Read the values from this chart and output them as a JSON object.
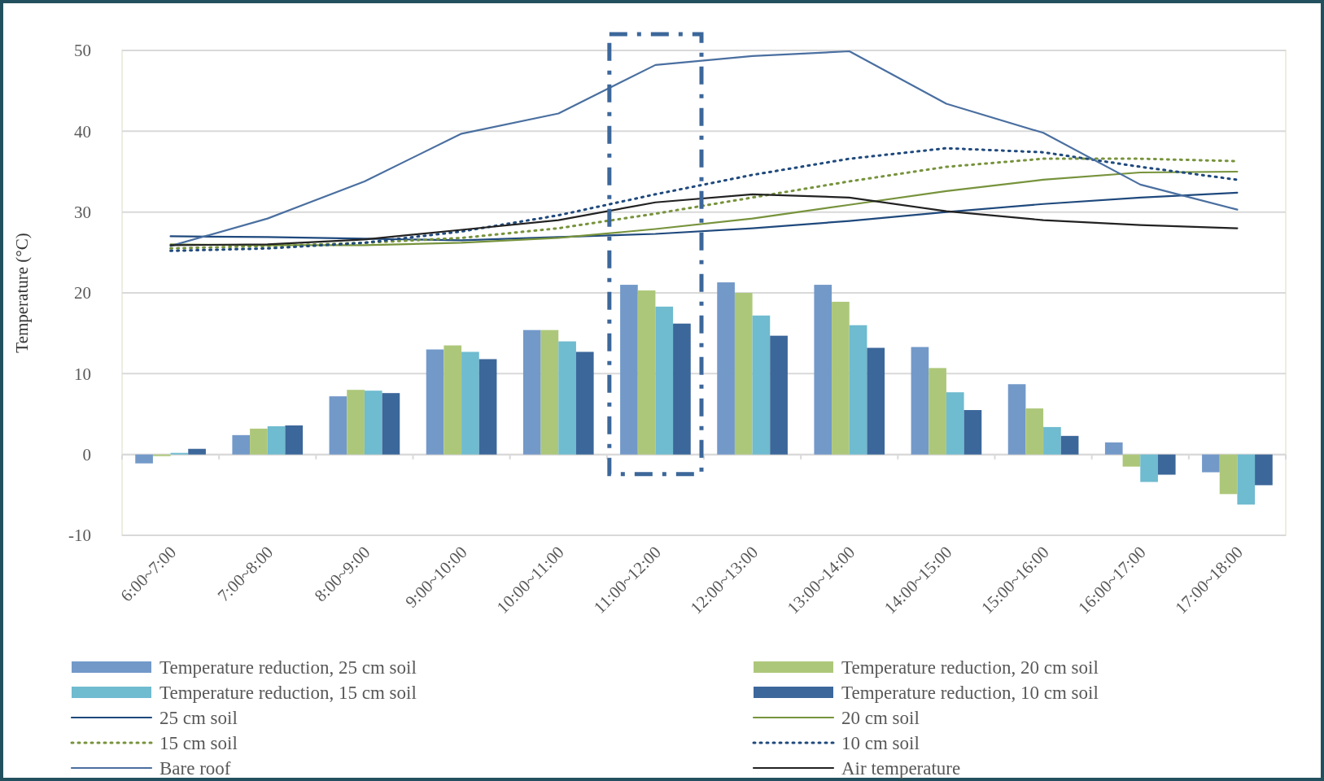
{
  "chart_data": {
    "type": "bar",
    "ylabel": "Temperature (°C)",
    "categories": [
      "6:00~7:00",
      "7:00~8:00",
      "8:00~9:00",
      "9:00~10:00",
      "10:00~11:00",
      "11:00~12:00",
      "12:00~13:00",
      "13:00~14:00",
      "14:00~15:00",
      "15:00~16:00",
      "16:00~17:00",
      "17:00~18:00"
    ],
    "series": [
      {
        "name": "Temperature reduction, 25 cm soil",
        "color": "#7399c9",
        "values": [
          -1.1,
          2.4,
          7.2,
          13.0,
          15.4,
          21.0,
          21.3,
          21.0,
          13.3,
          8.7,
          1.5,
          -2.2
        ]
      },
      {
        "name": "Temperature reduction, 20 cm soil",
        "color": "#adc77a",
        "values": [
          -0.2,
          3.2,
          8.0,
          13.5,
          15.4,
          20.3,
          20.0,
          18.9,
          10.7,
          5.7,
          -1.5,
          -4.9
        ]
      },
      {
        "name": "Temperature reduction, 15 cm soil",
        "color": "#6fbbd0",
        "values": [
          0.2,
          3.5,
          7.9,
          12.7,
          14.0,
          18.3,
          17.2,
          16.0,
          7.7,
          3.4,
          -3.4,
          -6.2
        ]
      },
      {
        "name": "Temperature reduction, 10 cm soil",
        "color": "#3c679a",
        "values": [
          0.7,
          3.6,
          7.6,
          11.8,
          12.7,
          16.2,
          14.7,
          13.2,
          5.5,
          2.3,
          -2.5,
          -3.8
        ]
      },
      {
        "name": "25 cm soil",
        "type": "line",
        "line_style": "solid",
        "color": "#1f497d",
        "values": [
          27.0,
          26.9,
          26.7,
          26.5,
          26.9,
          27.3,
          28.0,
          28.9,
          30.0,
          31.0,
          31.8,
          32.4
        ]
      },
      {
        "name": "20 cm soil",
        "type": "line",
        "line_style": "solid",
        "color": "#77933c",
        "values": [
          26.0,
          25.9,
          25.9,
          26.2,
          26.8,
          27.9,
          29.2,
          30.9,
          32.6,
          34.0,
          34.9,
          35.0
        ]
      },
      {
        "name": "15 cm soil",
        "type": "line",
        "line_style": "dotted",
        "color": "#77933c",
        "values": [
          25.5,
          25.8,
          26.2,
          26.8,
          28.0,
          29.8,
          31.8,
          33.8,
          35.6,
          36.6,
          36.6,
          36.3
        ]
      },
      {
        "name": "10 cm soil",
        "type": "line",
        "line_style": "dotted",
        "color": "#1f497d",
        "values": [
          25.2,
          25.5,
          26.2,
          27.6,
          29.6,
          32.2,
          34.6,
          36.6,
          37.9,
          37.4,
          35.6,
          34.0
        ]
      },
      {
        "name": "Bare roof",
        "type": "line",
        "line_style": "solid",
        "color": "#4a6fa0",
        "values": [
          25.8,
          29.2,
          33.8,
          39.7,
          42.2,
          48.2,
          49.3,
          49.9,
          43.4,
          39.8,
          33.4,
          30.3
        ]
      },
      {
        "name": "Air temperature",
        "type": "line",
        "line_style": "solid",
        "color": "#222222",
        "values": [
          25.9,
          26.0,
          26.6,
          27.8,
          29.0,
          31.2,
          32.2,
          31.8,
          30.1,
          29.0,
          28.4,
          28.0
        ]
      }
    ],
    "ylim": [
      -10,
      50
    ],
    "yticks": [
      -10,
      0,
      10,
      20,
      30,
      40,
      50
    ],
    "grid": "y",
    "legend": "bottom"
  }
}
